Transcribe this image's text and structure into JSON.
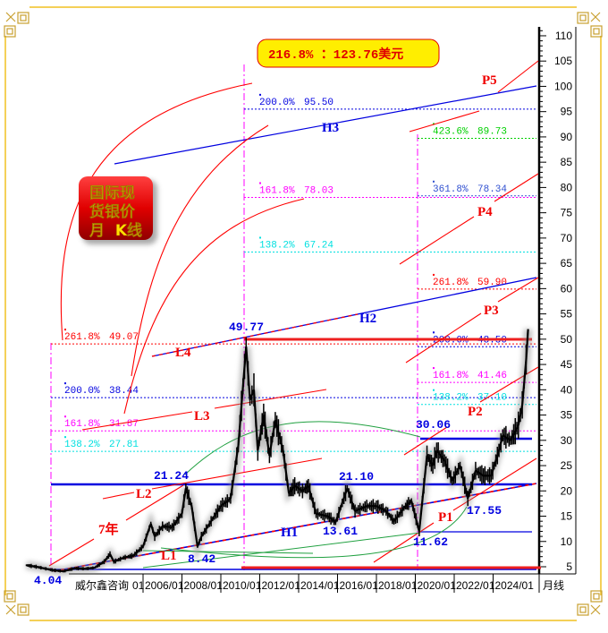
{
  "banner": {
    "text": "216.8%  ：123.76美元"
  },
  "title_box": {
    "line1": "国际现",
    "line2": "货银价",
    "line3": "月  K线"
  },
  "chart_data": {
    "type": "line",
    "period_label": "月线",
    "source_label": "威尔鑫咨询",
    "x_tick_labels": [
      "01",
      "2006/01",
      "2008/01",
      "2010/01",
      "2012/01",
      "2014/01",
      "2016/01",
      "2018/01",
      "2020/01",
      "2022/01",
      "2024/01"
    ],
    "y_ticks": [
      5,
      10,
      15,
      20,
      25,
      30,
      35,
      40,
      45,
      50,
      55,
      60,
      65,
      70,
      75,
      80,
      85,
      90,
      95,
      100,
      105,
      110
    ],
    "ylim": [
      5,
      110
    ],
    "xlim": [
      1999.7,
      2026.2
    ],
    "colors": {
      "price": "#000000",
      "fib_red": "#ff0000",
      "fib_blue": "#0000e0",
      "fib_magenta": "#ff00ff",
      "fib_cyan": "#00e0e0",
      "fib_green": "#00d000",
      "banner_bg": "#ffee00"
    },
    "price_series": {
      "x": [
        2000.0,
        2000.5,
        2001.0,
        2001.4,
        2001.9,
        2002.5,
        2003.0,
        2003.5,
        2004.0,
        2004.3,
        2004.5,
        2005.0,
        2005.5,
        2006.0,
        2006.4,
        2006.6,
        2007.0,
        2007.5,
        2008.0,
        2008.2,
        2008.5,
        2008.8,
        2009.0,
        2009.5,
        2010.0,
        2010.5,
        2010.9,
        2011.3,
        2011.5,
        2011.7,
        2011.9,
        2012.2,
        2012.5,
        2012.8,
        2013.2,
        2013.5,
        2013.8,
        2014.2,
        2014.5,
        2014.9,
        2015.5,
        2015.9,
        2016.5,
        2016.9,
        2017.5,
        2018.0,
        2018.5,
        2018.9,
        2019.5,
        2019.8,
        2020.2,
        2020.6,
        2020.9,
        2021.1,
        2021.5,
        2021.9,
        2022.3,
        2022.7,
        2023.1,
        2023.5,
        2023.9,
        2024.3,
        2024.5,
        2024.9,
        2025.3,
        2025.5,
        2025.7,
        2025.8
      ],
      "y": [
        5.3,
        5.0,
        4.6,
        4.3,
        4.1,
        4.7,
        4.6,
        4.8,
        6.0,
        7.5,
        6.0,
        6.8,
        7.2,
        9.0,
        13.5,
        11.0,
        13.0,
        12.8,
        15.5,
        20.5,
        17.0,
        9.0,
        11.0,
        14.0,
        17.0,
        18.5,
        29.0,
        48.5,
        38.0,
        40.0,
        28.0,
        35.0,
        27.0,
        34.0,
        28.0,
        19.5,
        21.0,
        20.0,
        21.0,
        15.5,
        15.0,
        13.8,
        20.5,
        16.0,
        17.0,
        17.0,
        16.0,
        14.0,
        17.0,
        18.0,
        12.0,
        27.0,
        25.0,
        28.0,
        26.0,
        22.0,
        25.0,
        18.5,
        24.0,
        23.0,
        23.0,
        28.0,
        31.0,
        30.0,
        33.0,
        37.0,
        46.0,
        52.0
      ]
    },
    "fib_levels": [
      {
        "group": "left",
        "pct": "261.8%",
        "value": "49.07",
        "level": 49.07,
        "color": "#ff0000"
      },
      {
        "group": "left",
        "pct": "200.0%",
        "value": "38.44",
        "level": 38.44,
        "color": "#0000e0"
      },
      {
        "group": "left",
        "pct": "161.8%",
        "value": "31.87",
        "level": 31.87,
        "color": "#ff00ff"
      },
      {
        "group": "left",
        "pct": "138.2%",
        "value": "27.81",
        "level": 27.81,
        "color": "#00e0e0"
      },
      {
        "group": "middle",
        "pct": "200.0%",
        "value": "95.50",
        "level": 95.5,
        "color": "#0000e0"
      },
      {
        "group": "middle",
        "pct": "161.8%",
        "value": "78.03",
        "level": 78.03,
        "color": "#ff00ff"
      },
      {
        "group": "middle",
        "pct": "138.2%",
        "value": "67.24",
        "level": 67.24,
        "color": "#00e0e0"
      },
      {
        "group": "right",
        "pct": "423.6%",
        "value": "89.73",
        "level": 89.73,
        "color": "#00d000"
      },
      {
        "group": "right",
        "pct": "361.8%",
        "value": "78.34",
        "level": 78.34,
        "color": "#3050d0"
      },
      {
        "group": "right",
        "pct": "261.8%",
        "value": "59.90",
        "level": 59.9,
        "color": "#ff0000"
      },
      {
        "group": "right",
        "pct": "200.0%",
        "value": "48.50",
        "level": 48.5,
        "color": "#0000e0"
      },
      {
        "group": "right",
        "pct": "161.8%",
        "value": "41.46",
        "level": 41.46,
        "color": "#ff00ff"
      },
      {
        "group": "right",
        "pct": "138.2%",
        "value": "37.10",
        "level": 37.1,
        "color": "#00e0e0"
      }
    ],
    "key_prices": [
      "4.04",
      "8.42",
      "21.24",
      "49.77",
      "21.10",
      "13.61",
      "11.62",
      "17.55",
      "30.06"
    ],
    "line_labels": [
      "L1",
      "L2",
      "L3",
      "L4",
      "7年",
      "H1",
      "H2",
      "H3",
      "P1",
      "P2",
      "P3",
      "P4",
      "P5"
    ]
  }
}
